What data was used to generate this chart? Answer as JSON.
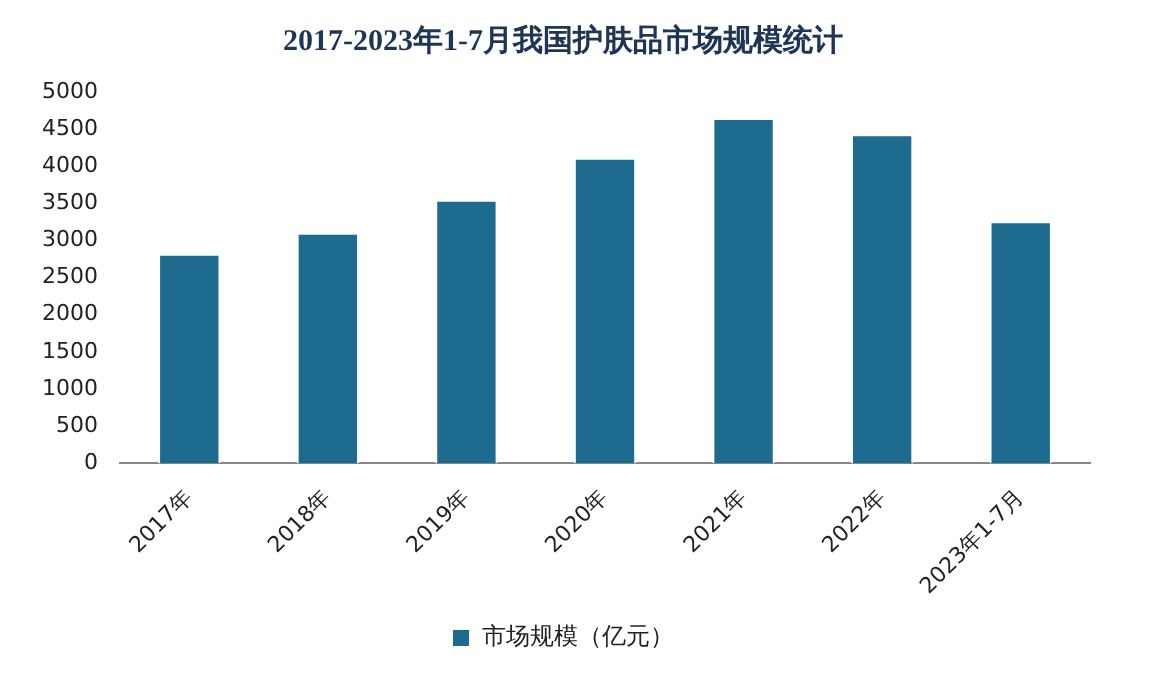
{
  "chart_data": {
    "type": "bar",
    "title": "2017-2023年1-7月我国护肤品市场规模统计",
    "categories": [
      "2017年",
      "2018年",
      "2019年",
      "2020年",
      "2021年",
      "2022年",
      "2023年1-7月"
    ],
    "series": [
      {
        "name": "市场规模（亿元）",
        "color": "#1d6b8f",
        "values": [
          2820,
          3105,
          3550,
          4115,
          4650,
          4430,
          3260
        ]
      }
    ],
    "ylim": [
      0,
      5000
    ],
    "yticks": [
      0,
      500,
      1000,
      1500,
      2000,
      2500,
      3000,
      3500,
      4000,
      4500,
      5000
    ],
    "grid": false,
    "legend": "bottom"
  }
}
